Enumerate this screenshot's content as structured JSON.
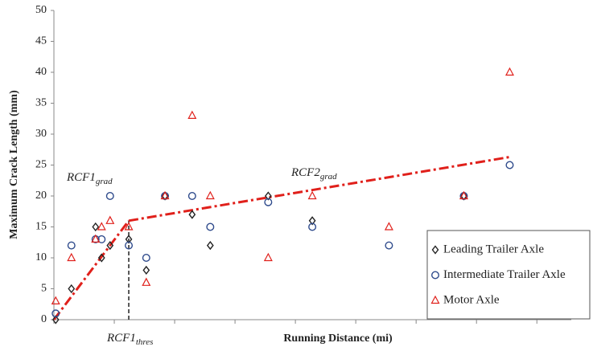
{
  "chart_data": {
    "type": "scatter",
    "x_label": "Running Distance (mi)",
    "y_label": "Maximum Crack Length (mm)",
    "xlim": [
      0,
      8.57
    ],
    "xticks": [
      0,
      1,
      2,
      3,
      4,
      5,
      6,
      7,
      8
    ],
    "ylim": [
      0,
      50
    ],
    "yticks": [
      0,
      5,
      10,
      15,
      20,
      25,
      30,
      35,
      40,
      45,
      50
    ],
    "grid": false,
    "legend": "lower right",
    "series": [
      {
        "name": "Leading Trailer Axle",
        "color": "#222222",
        "marker": "diamond",
        "x": [
          0.03,
          0.29,
          0.69,
          0.79,
          0.93,
          1.24,
          1.53,
          1.84,
          2.29,
          2.59,
          3.55,
          4.28,
          6.79
        ],
        "values": [
          0,
          5,
          15,
          10,
          12,
          13,
          8,
          20,
          17,
          12,
          20,
          16,
          20
        ]
      },
      {
        "name": "Intermediate Trailer Axle",
        "color": "#2f4b8c",
        "marker": "circle",
        "x": [
          0.03,
          0.29,
          0.69,
          0.79,
          0.93,
          1.24,
          1.53,
          1.84,
          2.29,
          2.59,
          3.55,
          4.28,
          5.55,
          6.79,
          7.55
        ],
        "values": [
          1,
          12,
          13,
          13,
          20,
          12,
          10,
          20,
          20,
          15,
          19,
          15,
          12,
          20,
          25
        ]
      },
      {
        "name": "Motor Axle",
        "color": "#e0201b",
        "marker": "triangle",
        "x": [
          0.03,
          0.29,
          0.69,
          0.79,
          0.93,
          1.24,
          1.53,
          1.84,
          2.29,
          2.59,
          3.55,
          4.28,
          5.55,
          6.79,
          7.55
        ],
        "values": [
          3,
          10,
          13,
          15,
          16,
          15,
          6,
          20,
          33,
          20,
          10,
          20,
          15,
          20,
          40
        ]
      }
    ],
    "trend_lines": [
      {
        "color": "#e0201b",
        "x": [
          0,
          1.24
        ],
        "values": [
          0,
          16
        ]
      },
      {
        "color": "#e0201b",
        "x": [
          1.24,
          7.55
        ],
        "values": [
          16,
          26.3
        ]
      }
    ],
    "threshold": {
      "x": 1.24,
      "values": [
        0,
        16
      ]
    },
    "annotations": [
      {
        "text": "RCF1",
        "sub": "grad"
      },
      {
        "text": "RCF2",
        "sub": "grad"
      },
      {
        "text": "RCF1",
        "sub": "thres"
      }
    ]
  }
}
